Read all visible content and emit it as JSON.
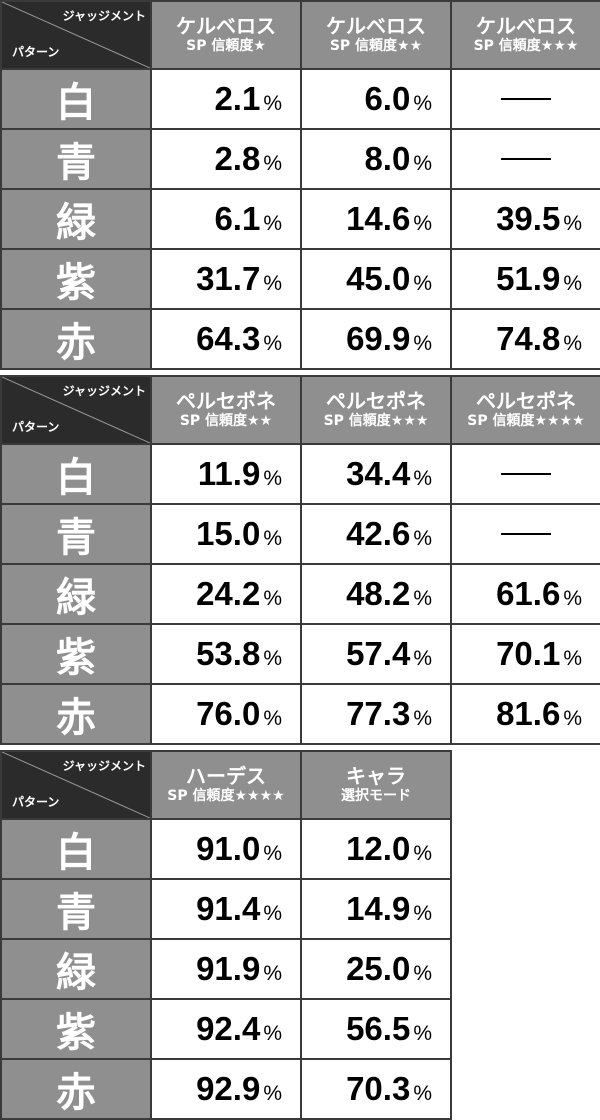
{
  "corner": {
    "judgment_label": "ジャッジメント",
    "pattern_label": "パターン"
  },
  "row_labels": [
    "白",
    "青",
    "緑",
    "紫",
    "赤"
  ],
  "percent_sign": "%",
  "dash": "—",
  "tables": [
    {
      "columns": [
        {
          "name": "ケルベロス",
          "sub": "SP 信頼度★"
        },
        {
          "name": "ケルベロス",
          "sub": "SP 信頼度★★"
        },
        {
          "name": "ケルベロス",
          "sub": "SP 信頼度★★★"
        }
      ],
      "rows": [
        [
          "2.1",
          "6.0",
          "—"
        ],
        [
          "2.8",
          "8.0",
          "—"
        ],
        [
          "6.1",
          "14.6",
          "39.5"
        ],
        [
          "31.7",
          "45.0",
          "51.9"
        ],
        [
          "64.3",
          "69.9",
          "74.8"
        ]
      ]
    },
    {
      "columns": [
        {
          "name": "ペルセポネ",
          "sub": "SP 信頼度★★"
        },
        {
          "name": "ペルセポネ",
          "sub": "SP 信頼度★★★"
        },
        {
          "name": "ペルセポネ",
          "sub": "SP 信頼度★★★★"
        }
      ],
      "rows": [
        [
          "11.9",
          "34.4",
          "—"
        ],
        [
          "15.0",
          "42.6",
          "—"
        ],
        [
          "24.2",
          "48.2",
          "61.6"
        ],
        [
          "53.8",
          "57.4",
          "70.1"
        ],
        [
          "76.0",
          "77.3",
          "81.6"
        ]
      ]
    },
    {
      "columns": [
        {
          "name": "ハーデス",
          "sub": "SP 信頼度★★★★"
        },
        {
          "name": "キャラ",
          "sub": "選択モード"
        }
      ],
      "rows": [
        [
          "91.0",
          "12.0"
        ],
        [
          "91.4",
          "14.9"
        ],
        [
          "91.9",
          "25.0"
        ],
        [
          "92.4",
          "56.5"
        ],
        [
          "92.9",
          "70.3"
        ]
      ]
    }
  ]
}
